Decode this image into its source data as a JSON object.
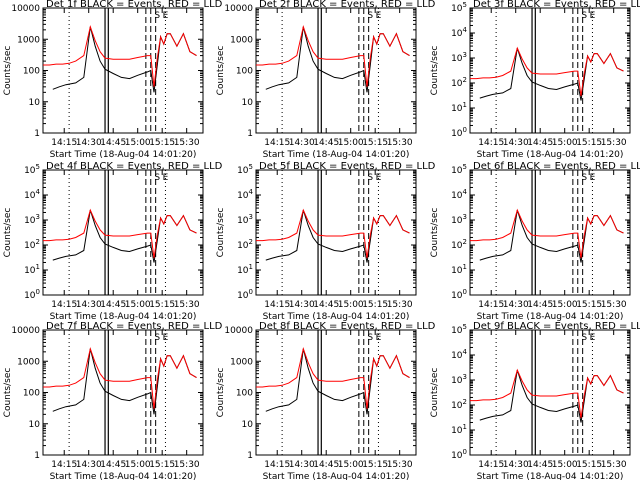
{
  "colors": {
    "events": "#000000",
    "lld": "#ff0000",
    "axes": "#000000",
    "background": "#ffffff"
  },
  "xticks": [
    "14:15",
    "14:30",
    "14:45",
    "15:00",
    "15:15",
    "15:30"
  ],
  "chart_data": [
    {
      "type": "line",
      "title": "Det 1f BLACK = Events, RED = LLD",
      "ylabel": "Counts/sec",
      "xlabel": "Start Time (18-Aug-04 14:01:20)",
      "yscale": "log",
      "ytick_style": "decimal",
      "ylim": [
        1,
        10000
      ]
    },
    {
      "type": "line",
      "title": "Det 2f BLACK = Events, RED = LLD",
      "ylabel": "Counts/sec",
      "xlabel": "Start Time (18-Aug-04 14:01:20)",
      "yscale": "log",
      "ytick_style": "decimal",
      "ylim": [
        1,
        10000
      ]
    },
    {
      "type": "line",
      "title": "Det 3f BLACK = Events, RED = LLD",
      "ylabel": "Counts/sec",
      "xlabel": "Start Time (18-Aug-04 14:01:20)",
      "yscale": "log",
      "ytick_style": "power",
      "ylim": [
        1,
        100000
      ]
    },
    {
      "type": "line",
      "title": "Det 4f BLACK = Events, RED = LLD",
      "ylabel": "Counts/sec",
      "xlabel": "Start Time (18-Aug-04 14:01:20)",
      "yscale": "log",
      "ytick_style": "power",
      "ylim": [
        1,
        100000
      ]
    },
    {
      "type": "line",
      "title": "Det 5f BLACK = Events, RED = LLD",
      "ylabel": "Counts/sec",
      "xlabel": "Start Time (18-Aug-04 14:01:20)",
      "yscale": "log",
      "ytick_style": "power",
      "ylim": [
        1,
        100000
      ]
    },
    {
      "type": "line",
      "title": "Det 6f BLACK = Events, RED = LLD",
      "ylabel": "Counts/sec",
      "xlabel": "Start Time (18-Aug-04 14:01:20)",
      "yscale": "log",
      "ytick_style": "power",
      "ylim": [
        1,
        100000
      ]
    },
    {
      "type": "line",
      "title": "Det 7f BLACK = Events, RED = LLD",
      "ylabel": "Counts/sec",
      "xlabel": "Start Time (18-Aug-04 14:01:20)",
      "yscale": "log",
      "ytick_style": "decimal",
      "ylim": [
        1,
        10000
      ]
    },
    {
      "type": "line",
      "title": "Det 8f BLACK = Events, RED = LLD",
      "ylabel": "Counts/sec",
      "xlabel": "Start Time (18-Aug-04 14:01:20)",
      "yscale": "log",
      "ytick_style": "decimal",
      "ylim": [
        1,
        10000
      ]
    },
    {
      "type": "line",
      "title": "Det 9f BLACK = Events, RED = LLD",
      "ylabel": "Counts/sec",
      "xlabel": "Start Time (18-Aug-04 14:01:20)",
      "yscale": "log",
      "ytick_style": "power",
      "ylim": [
        1,
        100000
      ]
    }
  ],
  "shared": {
    "xlim": [
      "14:02",
      "15:40"
    ],
    "markers": {
      "dotted": [
        "14:18",
        "15:17"
      ],
      "solid": [
        "14:40",
        "14:42"
      ],
      "dashed": [
        "15:05",
        "15:08",
        "15:11"
      ],
      "region_labels": [
        "S",
        "E"
      ],
      "region_label_positions": [
        "15:12",
        "15:17"
      ]
    },
    "series": [
      {
        "name": "Events",
        "color_key": "events",
        "x": [
          "14:08",
          "14:12",
          "14:16",
          "14:22",
          "14:27",
          "14:31",
          "14:34",
          "14:37",
          "14:40",
          "14:45",
          "14:50",
          "14:55",
          "15:00",
          "15:06",
          "15:08",
          "15:10",
          "15:12",
          "15:14",
          "15:16",
          "15:18",
          "15:20",
          "15:24",
          "15:28",
          "15:32",
          "15:36"
        ],
        "y": [
          25,
          30,
          35,
          40,
          60,
          2500,
          600,
          200,
          110,
          80,
          60,
          55,
          70,
          90,
          100,
          20,
          150,
          1200,
          700,
          1500,
          1500,
          600,
          1500,
          400,
          300
        ]
      },
      {
        "name": "LLD",
        "color_key": "lld",
        "x": [
          "14:02",
          "14:06",
          "14:10",
          "14:14",
          "14:18",
          "14:22",
          "14:27",
          "14:31",
          "14:34",
          "14:37",
          "14:40",
          "14:45",
          "14:50",
          "14:55",
          "15:00",
          "15:06",
          "15:08",
          "15:10",
          "15:12",
          "15:14",
          "15:16",
          "15:18",
          "15:20",
          "15:24",
          "15:28",
          "15:32",
          "15:36"
        ],
        "y": [
          150,
          150,
          160,
          160,
          170,
          200,
          300,
          2500,
          900,
          400,
          250,
          230,
          230,
          230,
          260,
          300,
          300,
          30,
          250,
          1200,
          700,
          1500,
          1500,
          600,
          1500,
          400,
          300
        ]
      }
    ]
  }
}
